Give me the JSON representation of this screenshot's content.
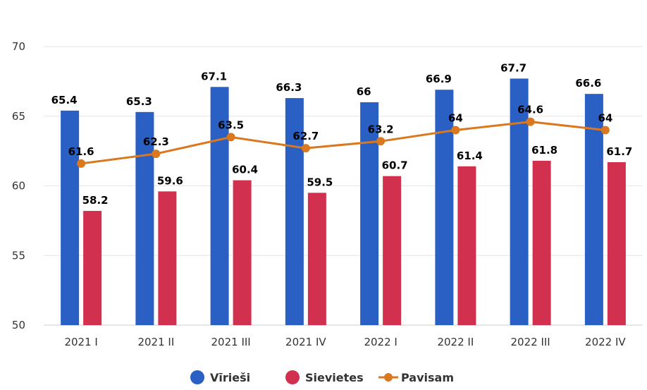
{
  "chart_data": {
    "type": "bar",
    "categories": [
      "2021 I",
      "2021 II",
      "2021 III",
      "2021 IV",
      "2022 I",
      "2022 II",
      "2022 III",
      "2022 IV"
    ],
    "series": [
      {
        "name": "Vīrieši",
        "type": "bar",
        "color": "#2a5fc4",
        "values": [
          65.4,
          65.3,
          67.1,
          66.3,
          66,
          66.9,
          67.7,
          66.6
        ],
        "labels": [
          "65.4",
          "65.3",
          "67.1",
          "66.3",
          "66",
          "66.9",
          "67.7",
          "66.6"
        ]
      },
      {
        "name": "Sievietes",
        "type": "bar",
        "color": "#d1304f",
        "values": [
          58.2,
          59.6,
          60.4,
          59.5,
          60.7,
          61.4,
          61.8,
          61.7
        ],
        "labels": [
          "58.2",
          "59.6",
          "60.4",
          "59.5",
          "60.7",
          "61.4",
          "61.8",
          "61.7"
        ]
      },
      {
        "name": "Pavisam",
        "type": "line",
        "color": "#d9781e",
        "values": [
          61.6,
          62.3,
          63.5,
          62.7,
          63.2,
          64,
          64.6,
          64
        ],
        "labels": [
          "61.6",
          "62.3",
          "63.5",
          "62.7",
          "63.2",
          "64",
          "64.6",
          "64"
        ]
      }
    ],
    "ylim": [
      50,
      70
    ],
    "yticks": [
      "50",
      "55",
      "60",
      "65",
      "70"
    ],
    "grid": true,
    "legend_position": "bottom-center"
  }
}
